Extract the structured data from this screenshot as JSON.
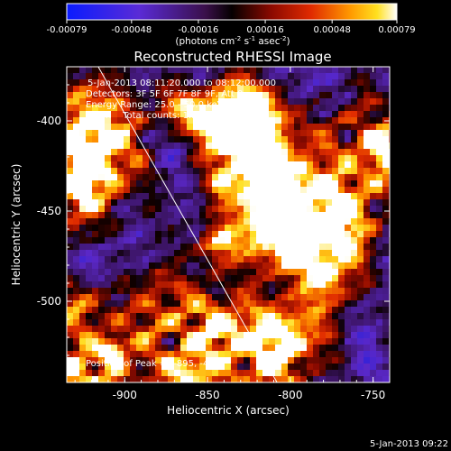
{
  "chart_data": {
    "type": "heatmap",
    "title": "Reconstructed RHESSI Image",
    "colorbar": {
      "ticks": [
        "-0.00079",
        "-0.00048",
        "-0.00016",
        "0.00016",
        "0.00048",
        "0.00079"
      ],
      "range": [
        -0.00079,
        0.00079
      ],
      "unit_label": "(photons cm",
      "unit_sup1": "-2",
      "unit_mid1": " s",
      "unit_sup2": "-1",
      "unit_mid2": " asec",
      "unit_sup3": "-2",
      "unit_end": ")",
      "colormap": "RHESSI color table (blue-purple-black-red-orange-yellow-white)"
    },
    "xlabel": "Heliocentric X (arcsec)",
    "ylabel": "Heliocentric Y (arcsec)",
    "xlim": [
      -935,
      -740
    ],
    "ylim": [
      -545,
      -370
    ],
    "x_ticks": [
      "-900",
      "-850",
      "-800",
      "-750"
    ],
    "y_ticks": [
      "-400",
      "-450",
      "-500"
    ],
    "annotations": [
      "5-Jan-2013 08:11:20.000 to 08:12:00.000",
      "Detectors: 3F 5F 6F 7F 8F 9F, Att 0",
      "Energy Range: 25.0 - 50.0 keV",
      "Clean    Total counts: 1.34E+03"
    ],
    "peak_label": "Position of Peak = [-895, -410]",
    "peak_position": [
      -895,
      -410
    ],
    "limb_line": {
      "from": [
        -916,
        -370
      ],
      "to": [
        -808,
        -545
      ]
    },
    "timestamp": "5-Jan-2013 09:22",
    "grid": false
  }
}
